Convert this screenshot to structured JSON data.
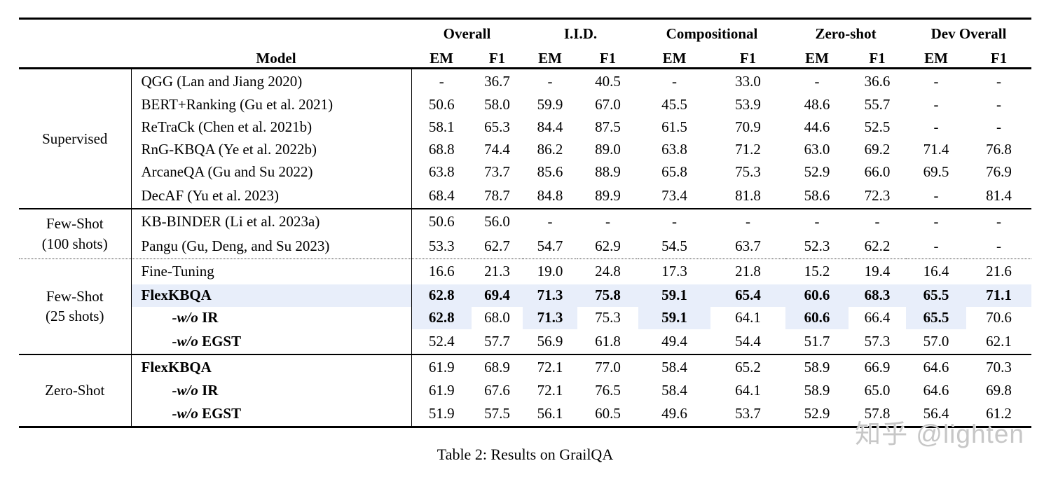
{
  "table": {
    "caption": "Table 2: Results on GrailQA",
    "highlight_color": "#e8eefa",
    "model_header": "Model",
    "col_groups": [
      "Overall",
      "I.I.D.",
      "Compositional",
      "Zero-shot",
      "Dev Overall"
    ],
    "subheaders": [
      "EM",
      "F1"
    ],
    "sections": [
      {
        "group_lines": [
          "Supervised"
        ],
        "separator": "solid",
        "rows": [
          {
            "model_parts": [
              {
                "t": "QGG (Lan and Jiang 2020)",
                "s": ""
              }
            ],
            "values": [
              "-",
              "36.7",
              "-",
              "40.5",
              "-",
              "33.0",
              "-",
              "36.6",
              "-",
              "-"
            ]
          },
          {
            "model_parts": [
              {
                "t": "BERT+Ranking (Gu et al. 2021)",
                "s": ""
              }
            ],
            "values": [
              "50.6",
              "58.0",
              "59.9",
              "67.0",
              "45.5",
              "53.9",
              "48.6",
              "55.7",
              "-",
              "-"
            ]
          },
          {
            "model_parts": [
              {
                "t": "ReTraCk (Chen et al. 2021b)",
                "s": ""
              }
            ],
            "values": [
              "58.1",
              "65.3",
              "84.4",
              "87.5",
              "61.5",
              "70.9",
              "44.6",
              "52.5",
              "-",
              "-"
            ]
          },
          {
            "model_parts": [
              {
                "t": "RnG-KBQA (Ye et al. 2022b)",
                "s": ""
              }
            ],
            "values": [
              "68.8",
              "74.4",
              "86.2",
              "89.0",
              "63.8",
              "71.2",
              "63.0",
              "69.2",
              "71.4",
              "76.8"
            ]
          },
          {
            "model_parts": [
              {
                "t": "ArcaneQA (Gu and Su 2022)",
                "s": ""
              }
            ],
            "values": [
              "63.8",
              "73.7",
              "85.6",
              "88.9",
              "65.8",
              "75.3",
              "52.9",
              "66.0",
              "69.5",
              "76.9"
            ]
          },
          {
            "model_parts": [
              {
                "t": "DecAF (Yu et al. 2023)",
                "s": ""
              }
            ],
            "values": [
              "68.4",
              "78.7",
              "84.8",
              "89.9",
              "73.4",
              "81.8",
              "58.6",
              "72.3",
              "-",
              "81.4"
            ]
          }
        ]
      },
      {
        "group_lines": [
          "Few-Shot",
          "(100 shots)"
        ],
        "separator": "solid",
        "rows": [
          {
            "model_parts": [
              {
                "t": "KB-BINDER (Li et al. 2023a)",
                "s": ""
              }
            ],
            "values": [
              "50.6",
              "56.0",
              "-",
              "-",
              "-",
              "-",
              "-",
              "-",
              "-",
              "-"
            ]
          },
          {
            "model_parts": [
              {
                "t": "Pangu (Gu, Deng, and Su 2023)",
                "s": ""
              }
            ],
            "values": [
              "53.3",
              "62.7",
              "54.7",
              "62.9",
              "54.5",
              "63.7",
              "52.3",
              "62.2",
              "-",
              "-"
            ]
          }
        ]
      },
      {
        "group_lines": [
          "Few-Shot",
          "(25 shots)"
        ],
        "separator": "dotted",
        "rows": [
          {
            "model_parts": [
              {
                "t": "Fine-Tuning",
                "s": ""
              }
            ],
            "values": [
              "16.6",
              "21.3",
              "19.0",
              "24.8",
              "17.3",
              "21.8",
              "15.2",
              "19.4",
              "16.4",
              "21.6"
            ]
          },
          {
            "model_parts": [
              {
                "t": "FlexKBQA",
                "s": "b"
              }
            ],
            "bold": "all",
            "highlight": "row",
            "values": [
              "62.8",
              "69.4",
              "71.3",
              "75.8",
              "59.1",
              "65.4",
              "60.6",
              "68.3",
              "65.5",
              "71.1"
            ]
          },
          {
            "model_parts": [
              {
                "t": "-w/o ",
                "s": "bi"
              },
              {
                "t": "IR",
                "s": "b"
              }
            ],
            "indent": true,
            "bold": [
              0,
              2,
              4,
              6,
              8
            ],
            "highlight": [
              0,
              2,
              4,
              6,
              8
            ],
            "values": [
              "62.8",
              "68.0",
              "71.3",
              "75.3",
              "59.1",
              "64.1",
              "60.6",
              "66.4",
              "65.5",
              "70.6"
            ]
          },
          {
            "model_parts": [
              {
                "t": "-w/o ",
                "s": "bi"
              },
              {
                "t": "EGST",
                "s": "b"
              }
            ],
            "indent": true,
            "values": [
              "52.4",
              "57.7",
              "56.9",
              "61.8",
              "49.4",
              "54.4",
              "51.7",
              "57.3",
              "57.0",
              "62.1"
            ]
          }
        ]
      },
      {
        "group_lines": [
          "Zero-Shot"
        ],
        "separator": "solid",
        "rows": [
          {
            "model_parts": [
              {
                "t": "FlexKBQA",
                "s": "b"
              }
            ],
            "values": [
              "61.9",
              "68.9",
              "72.1",
              "77.0",
              "58.4",
              "65.2",
              "58.9",
              "66.9",
              "64.6",
              "70.3"
            ]
          },
          {
            "model_parts": [
              {
                "t": "-w/o ",
                "s": "bi"
              },
              {
                "t": "IR",
                "s": "b"
              }
            ],
            "indent": true,
            "values": [
              "61.9",
              "67.6",
              "72.1",
              "76.5",
              "58.4",
              "64.1",
              "58.9",
              "65.0",
              "64.6",
              "69.8"
            ]
          },
          {
            "model_parts": [
              {
                "t": "-w/o ",
                "s": "bi"
              },
              {
                "t": "EGST",
                "s": "b"
              }
            ],
            "indent": true,
            "values": [
              "51.9",
              "57.5",
              "56.1",
              "60.5",
              "49.6",
              "53.7",
              "52.9",
              "57.8",
              "56.4",
              "61.2"
            ]
          }
        ]
      }
    ]
  },
  "watermark": "知乎 @lighten"
}
